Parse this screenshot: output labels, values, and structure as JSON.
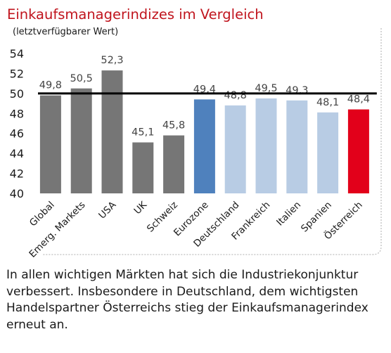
{
  "colors": {
    "title": "#c0141d",
    "default_bar": "#767676",
    "highlight_bar": "#4f81bd",
    "light_bar": "#b8cce4",
    "austria_bar": "#e2001a",
    "threshold_line": "#000000",
    "frame": "#bfbfbf"
  },
  "chart_data": {
    "type": "bar",
    "title": "Einkaufsmanagerindizes im Vergleich",
    "subtitle": "(letztverfügbarer Wert)",
    "categories": [
      "Global",
      "Emerg. Markets",
      "USA",
      "UK",
      "Schweiz",
      "Eurozone",
      "Deutschland",
      "Frankreich",
      "Italien",
      "Spanien",
      "Österreich"
    ],
    "values": [
      49.8,
      50.5,
      52.3,
      45.1,
      45.8,
      49.4,
      48.8,
      49.5,
      49.3,
      48.1,
      48.4
    ],
    "value_labels": [
      "49,8",
      "50,5",
      "52,3",
      "45,1",
      "45,8",
      "49,4",
      "48,8",
      "49,5",
      "49,3",
      "48,1",
      "48,4"
    ],
    "bar_colors": [
      "default_bar",
      "default_bar",
      "default_bar",
      "default_bar",
      "default_bar",
      "highlight_bar",
      "light_bar",
      "light_bar",
      "light_bar",
      "light_bar",
      "austria_bar"
    ],
    "ylim": [
      40,
      54
    ],
    "yticks": [
      40,
      42,
      44,
      46,
      48,
      50,
      52,
      54
    ],
    "reference_line": 50,
    "grid": false,
    "legend": "none"
  },
  "caption": "In allen wichtigen Märkten hat sich die Industriekonjunktur verbessert. Insbesondere in Deutschland, dem wichtigsten Handelspartner Österreichs stieg der Einkaufsmanagerindex erneut an."
}
